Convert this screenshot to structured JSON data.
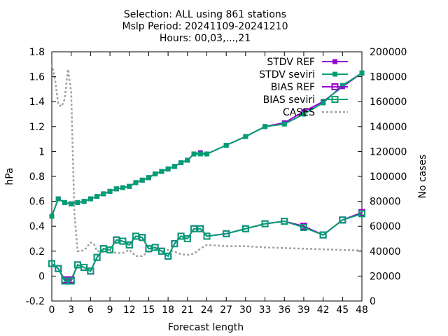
{
  "chart_data": {
    "type": "line",
    "title_lines": [
      "Selection: ALL using   861 stations",
      "Mslp   Period: 20241109-20241210",
      "Hours: 00,03,...,21"
    ],
    "xlabel": "Forecast length",
    "ylabel": "hPa",
    "y2label": "No cases",
    "xlim": [
      0,
      48
    ],
    "ylim": [
      -0.2,
      1.8
    ],
    "y2lim": [
      0,
      200000
    ],
    "xticks": [
      0,
      3,
      6,
      9,
      12,
      15,
      18,
      21,
      24,
      27,
      30,
      33,
      36,
      39,
      42,
      45,
      48
    ],
    "yticks": [
      -0.2,
      0,
      0.2,
      0.4,
      0.6,
      0.8,
      1,
      1.2,
      1.4,
      1.6,
      1.8
    ],
    "y2ticks": [
      0,
      20000,
      40000,
      60000,
      80000,
      100000,
      120000,
      140000,
      160000,
      180000,
      200000
    ],
    "legend_position": "top-right",
    "colors": {
      "ref": "#9400d3",
      "seviri": "#009e73",
      "cases": "#a0a0a0"
    },
    "series": [
      {
        "name": "STDV REF",
        "kind": "stdv",
        "color_key": "ref",
        "x": [
          0,
          1,
          2,
          3,
          4,
          5,
          6,
          7,
          8,
          9,
          10,
          11,
          12,
          13,
          14,
          15,
          16,
          17,
          18,
          19,
          20,
          21,
          22,
          23,
          24,
          27,
          30,
          33,
          36,
          39,
          42,
          45,
          48
        ],
        "values": [
          0.48,
          0.62,
          0.59,
          0.58,
          0.59,
          0.6,
          0.62,
          0.64,
          0.66,
          0.68,
          0.7,
          0.71,
          0.72,
          0.75,
          0.77,
          0.79,
          0.82,
          0.84,
          0.86,
          0.88,
          0.91,
          0.93,
          0.98,
          0.99,
          0.98,
          1.05,
          1.12,
          1.2,
          1.23,
          1.32,
          1.4,
          1.52,
          1.63
        ]
      },
      {
        "name": "STDV seviri",
        "kind": "stdv",
        "color_key": "seviri",
        "x": [
          0,
          1,
          2,
          3,
          4,
          5,
          6,
          7,
          8,
          9,
          10,
          11,
          12,
          13,
          14,
          15,
          16,
          17,
          18,
          19,
          20,
          21,
          22,
          23,
          24,
          27,
          30,
          33,
          36,
          39,
          42,
          45,
          48
        ],
        "values": [
          0.48,
          0.62,
          0.59,
          0.58,
          0.59,
          0.6,
          0.62,
          0.64,
          0.66,
          0.68,
          0.7,
          0.71,
          0.72,
          0.75,
          0.77,
          0.79,
          0.82,
          0.84,
          0.86,
          0.88,
          0.91,
          0.93,
          0.98,
          0.98,
          0.98,
          1.05,
          1.12,
          1.2,
          1.22,
          1.3,
          1.39,
          1.53,
          1.63
        ]
      },
      {
        "name": "BIAS REF",
        "kind": "bias",
        "color_key": "ref",
        "x": [
          0,
          1,
          2,
          3,
          4,
          5,
          6,
          7,
          8,
          9,
          10,
          11,
          12,
          13,
          14,
          15,
          16,
          17,
          18,
          19,
          20,
          21,
          22,
          23,
          24,
          27,
          30,
          33,
          36,
          39,
          42,
          45,
          48
        ],
        "values": [
          0.1,
          0.06,
          -0.03,
          -0.03,
          0.09,
          0.07,
          0.04,
          0.15,
          0.22,
          0.21,
          0.29,
          0.28,
          0.25,
          0.32,
          0.31,
          0.22,
          0.23,
          0.2,
          0.16,
          0.26,
          0.32,
          0.3,
          0.38,
          0.38,
          0.32,
          0.34,
          0.38,
          0.42,
          0.44,
          0.4,
          0.33,
          0.45,
          0.51
        ]
      },
      {
        "name": "BIAS seviri",
        "kind": "bias",
        "color_key": "seviri",
        "x": [
          0,
          1,
          2,
          3,
          4,
          5,
          6,
          7,
          8,
          9,
          10,
          11,
          12,
          13,
          14,
          15,
          16,
          17,
          18,
          19,
          20,
          21,
          22,
          23,
          24,
          27,
          30,
          33,
          36,
          39,
          42,
          45,
          48
        ],
        "values": [
          0.1,
          0.06,
          -0.04,
          -0.04,
          0.09,
          0.07,
          0.04,
          0.15,
          0.22,
          0.21,
          0.29,
          0.28,
          0.25,
          0.32,
          0.31,
          0.22,
          0.23,
          0.2,
          0.16,
          0.26,
          0.32,
          0.3,
          0.38,
          0.38,
          0.32,
          0.34,
          0.38,
          0.42,
          0.44,
          0.39,
          0.33,
          0.45,
          0.5
        ]
      }
    ],
    "cases": {
      "name": "CASES",
      "x": [
        0,
        0.5,
        1,
        1.5,
        2,
        2.5,
        3,
        3.5,
        4,
        5,
        6,
        6.5,
        7,
        8,
        9,
        10,
        11,
        12,
        13,
        14,
        15,
        16,
        17,
        18,
        19,
        20,
        21,
        22,
        23,
        24,
        27,
        30,
        33,
        36,
        39,
        42,
        45,
        48
      ],
      "values": [
        190000,
        178000,
        158000,
        156000,
        162000,
        186000,
        168000,
        70000,
        40000,
        40500,
        47000,
        46000,
        40000,
        39500,
        40000,
        38500,
        38500,
        41000,
        36000,
        36000,
        40000,
        42000,
        40000,
        41000,
        39500,
        37500,
        37000,
        38000,
        42000,
        45000,
        44000,
        44000,
        43000,
        42500,
        42000,
        41500,
        41000,
        40500
      ]
    }
  }
}
